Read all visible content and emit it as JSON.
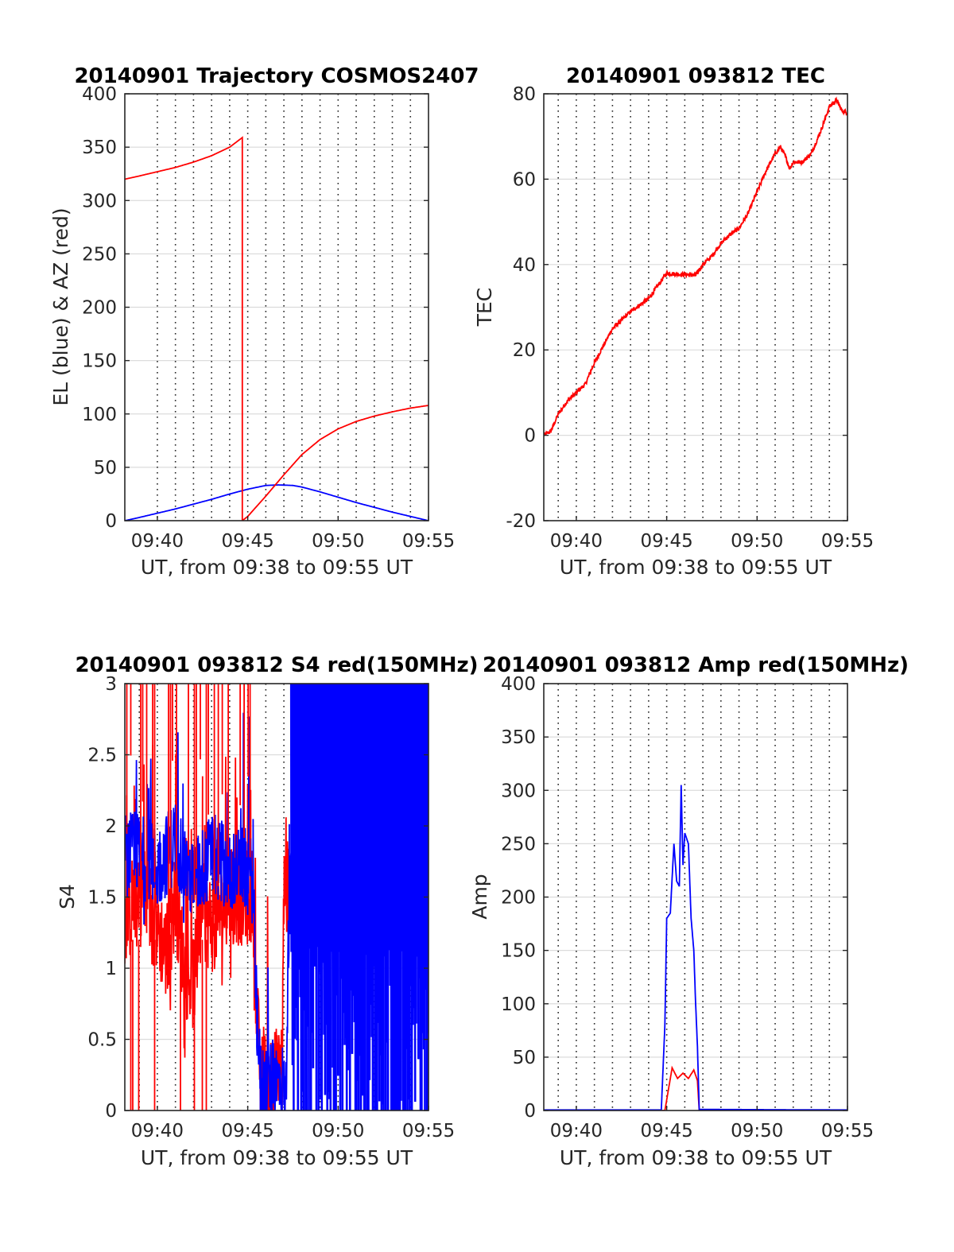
{
  "figure": {
    "background": "#ffffff",
    "colors": {
      "red": "#ff0000",
      "blue": "#0000ff",
      "grid": "#262626",
      "axis": "#262626"
    }
  },
  "chart_data": [
    {
      "type": "line",
      "title": "20140901 Trajectory COSMOS2407",
      "xlabel": "UT, from 09:38 to 09:55 UT",
      "ylabel": "EL (blue) & AZ (red)",
      "x_range_min": [
        578.2,
        595
      ],
      "ylim": [
        0,
        400
      ],
      "y_ticks": [
        "0",
        "50",
        "100",
        "150",
        "200",
        "250",
        "300",
        "350",
        "400"
      ],
      "y_tick_values": [
        0,
        50,
        100,
        150,
        200,
        250,
        300,
        350,
        400
      ],
      "x_ticks": [
        "09:40",
        "09:45",
        "09:50",
        "09:55"
      ],
      "x_tick_values": [
        580,
        585,
        590,
        595
      ],
      "vgrid_minutes": [
        580,
        581,
        582,
        583,
        584,
        585,
        586,
        587,
        588,
        589,
        590,
        591,
        592,
        593,
        594
      ],
      "grid": "dotted vertical every minute, solid horizontal",
      "series": [
        {
          "color": "#0000ff",
          "noise": 0,
          "spikes": 0,
          "points": [
            [
              578.2,
              0
            ],
            [
              579,
              3
            ],
            [
              580,
              7
            ],
            [
              581,
              11
            ],
            [
              582,
              15.5
            ],
            [
              583,
              20
            ],
            [
              584,
              25
            ],
            [
              585,
              29.5
            ],
            [
              586,
              33
            ],
            [
              586.7,
              33.5
            ],
            [
              587.5,
              33
            ],
            [
              588,
              31.5
            ],
            [
              589,
              27
            ],
            [
              590,
              22
            ],
            [
              591,
              17
            ],
            [
              592,
              12.5
            ],
            [
              593,
              8
            ],
            [
              594,
              4
            ],
            [
              595,
              0
            ]
          ]
        },
        {
          "color": "#ff0000",
          "noise": 0,
          "spikes": 0,
          "points": [
            [
              578.2,
              320
            ],
            [
              579,
              323
            ],
            [
              580,
              327
            ],
            [
              581,
              331
            ],
            [
              582,
              336
            ],
            [
              583,
              342
            ],
            [
              584,
              350
            ],
            [
              584.7,
              359
            ],
            [
              584.7,
              0
            ],
            [
              585,
              4
            ],
            [
              586,
              23
            ],
            [
              587,
              43
            ],
            [
              588,
              62
            ],
            [
              589,
              76
            ],
            [
              590,
              86
            ],
            [
              591,
              93
            ],
            [
              592,
              98
            ],
            [
              593,
              102
            ],
            [
              594,
              105.5
            ],
            [
              595,
              108
            ]
          ]
        }
      ]
    },
    {
      "type": "line",
      "title": "20140901 093812 TEC",
      "xlabel": "UT, from 09:38 to 09:55 UT",
      "ylabel": "TEC",
      "x_range_min": [
        578.2,
        595
      ],
      "ylim": [
        -20,
        80
      ],
      "y_ticks": [
        "-20",
        "0",
        "20",
        "40",
        "60",
        "80"
      ],
      "y_tick_values": [
        -20,
        0,
        20,
        40,
        60,
        80
      ],
      "x_ticks": [
        "09:40",
        "09:45",
        "09:50",
        "09:55"
      ],
      "x_tick_values": [
        580,
        585,
        590,
        595
      ],
      "vgrid_minutes": [
        579,
        580,
        581,
        582,
        583,
        584,
        585,
        586,
        587,
        588,
        589,
        590,
        591,
        592,
        593,
        594
      ],
      "grid": "dotted vertical every minute, solid horizontal",
      "series": [
        {
          "color": "#ff0000",
          "noise": 0.5,
          "spikes": 0,
          "points": [
            [
              578.2,
              0
            ],
            [
              578.6,
              1
            ],
            [
              579,
              5
            ],
            [
              579.5,
              8
            ],
            [
              580,
              10
            ],
            [
              580.5,
              12
            ],
            [
              581,
              17
            ],
            [
              581.5,
              21
            ],
            [
              582,
              25
            ],
            [
              582.5,
              27
            ],
            [
              583,
              29
            ],
            [
              583.5,
              30.5
            ],
            [
              584,
              32
            ],
            [
              584.5,
              35
            ],
            [
              585,
              38
            ],
            [
              585.4,
              37.8
            ],
            [
              586.6,
              37.5
            ],
            [
              587,
              40
            ],
            [
              587.5,
              42
            ],
            [
              588,
              45
            ],
            [
              588.5,
              47
            ],
            [
              589,
              48.5
            ],
            [
              589.5,
              52
            ],
            [
              590,
              57
            ],
            [
              590.5,
              62
            ],
            [
              591,
              66
            ],
            [
              591.3,
              67.5
            ],
            [
              591.6,
              65
            ],
            [
              591.8,
              62.5
            ],
            [
              592,
              64
            ],
            [
              592.5,
              64
            ],
            [
              593,
              66
            ],
            [
              593.5,
              71
            ],
            [
              594,
              77
            ],
            [
              594.4,
              78.5
            ],
            [
              594.7,
              76
            ],
            [
              595,
              75.5
            ]
          ]
        }
      ]
    },
    {
      "type": "line",
      "title": "20140901 093812 S4 red(150MHz)",
      "xlabel": "UT, from 09:38 to 09:55 UT",
      "ylabel": "S4",
      "x_range_min": [
        578.2,
        595
      ],
      "ylim": [
        0,
        3
      ],
      "y_ticks": [
        "0",
        "0.5",
        "1",
        "1.5",
        "2",
        "2.5",
        "3"
      ],
      "y_tick_values": [
        0,
        0.5,
        1,
        1.5,
        2,
        2.5,
        3
      ],
      "x_ticks": [
        "09:40",
        "09:45",
        "09:50",
        "09:55"
      ],
      "x_tick_values": [
        580,
        585,
        590,
        595
      ],
      "vgrid_minutes": [
        579,
        580,
        581,
        582,
        583,
        584,
        585,
        586,
        587,
        588,
        589,
        590,
        591,
        592,
        593,
        594
      ],
      "grid": "dotted vertical every minute, solid horizontal",
      "series": [
        {
          "color": "#ff0000",
          "noise": 0.35,
          "spikes": 0.25,
          "points": [
            [
              578.2,
              1.3
            ],
            [
              579,
              1.6
            ],
            [
              580,
              1.3
            ],
            [
              580.5,
              1.1
            ],
            [
              581,
              1.5
            ],
            [
              581.5,
              1.0
            ],
            [
              582,
              0.9
            ],
            [
              582.5,
              1.4
            ],
            [
              583,
              1.3
            ],
            [
              584,
              1.5
            ],
            [
              584.8,
              1.5
            ],
            [
              585.3,
              1.5
            ],
            [
              585.5,
              0.7
            ],
            [
              585.7,
              0.2
            ],
            [
              586.5,
              0.25
            ],
            [
              586.9,
              0.2
            ],
            [
              587,
              1.5
            ],
            [
              588,
              1.8
            ],
            [
              589,
              1.9
            ],
            [
              590,
              2.0
            ],
            [
              591,
              2.0
            ],
            [
              592,
              2.0
            ],
            [
              593,
              2.0
            ],
            [
              594,
              2.0
            ],
            [
              595,
              2.0
            ]
          ]
        },
        {
          "color": "#0000ff",
          "noise": 0.3,
          "spikes": 0.2,
          "points": [
            [
              578.2,
              1.8
            ],
            [
              579,
              1.8
            ],
            [
              580,
              1.7
            ],
            [
              581,
              1.9
            ],
            [
              582,
              1.6
            ],
            [
              583,
              1.8
            ],
            [
              584,
              1.7
            ],
            [
              584.8,
              1.7
            ],
            [
              585.3,
              1.6
            ],
            [
              585.5,
              0.7
            ],
            [
              585.7,
              0.2
            ],
            [
              586.5,
              0.2
            ],
            [
              586.9,
              0.2
            ],
            [
              587.1,
              0.05
            ],
            [
              587.3,
              1.5
            ],
            [
              588,
              1.8
            ],
            [
              589,
              1.5
            ],
            [
              590,
              1.5
            ],
            [
              591,
              1.5
            ],
            [
              592,
              1.5
            ],
            [
              593,
              1.5
            ],
            [
              594,
              1.5
            ],
            [
              595,
              1.5
            ]
          ]
        }
      ],
      "saturation_from_minute": 587.4
    },
    {
      "type": "line",
      "title": "20140901 093812 Amp red(150MHz)",
      "xlabel": "UT, from 09:38 to 09:55 UT",
      "ylabel": "Amp",
      "x_range_min": [
        578.2,
        595
      ],
      "ylim": [
        0,
        400
      ],
      "y_ticks": [
        "0",
        "50",
        "100",
        "150",
        "200",
        "250",
        "300",
        "350",
        "400"
      ],
      "y_tick_values": [
        0,
        50,
        100,
        150,
        200,
        250,
        300,
        350,
        400
      ],
      "x_ticks": [
        "09:40",
        "09:45",
        "09:50",
        "09:55"
      ],
      "x_tick_values": [
        580,
        585,
        590,
        595
      ],
      "vgrid_minutes": [
        579,
        580,
        581,
        582,
        583,
        584,
        585,
        586,
        587,
        588,
        589,
        590,
        591,
        592,
        593,
        594
      ],
      "grid": "dotted vertical every minute, solid horizontal",
      "series": [
        {
          "color": "#ff0000",
          "noise": 0,
          "spikes": 0,
          "points": [
            [
              578.2,
              0
            ],
            [
              584.9,
              0
            ],
            [
              585.1,
              20
            ],
            [
              585.3,
              40
            ],
            [
              585.6,
              30
            ],
            [
              585.9,
              35
            ],
            [
              586.2,
              30
            ],
            [
              586.5,
              38
            ],
            [
              586.7,
              28
            ],
            [
              586.8,
              0
            ],
            [
              595,
              0
            ]
          ]
        },
        {
          "color": "#0000ff",
          "noise": 0,
          "spikes": 0,
          "points": [
            [
              578.2,
              0.5
            ],
            [
              584.7,
              0.5
            ],
            [
              584.9,
              80
            ],
            [
              585.0,
              180
            ],
            [
              585.2,
              185
            ],
            [
              585.4,
              250
            ],
            [
              585.55,
              215
            ],
            [
              585.7,
              210
            ],
            [
              585.8,
              305
            ],
            [
              585.9,
              230
            ],
            [
              586.0,
              260
            ],
            [
              586.2,
              250
            ],
            [
              586.35,
              180
            ],
            [
              586.5,
              150
            ],
            [
              586.6,
              100
            ],
            [
              586.7,
              60
            ],
            [
              586.8,
              1
            ],
            [
              595,
              0.5
            ]
          ]
        }
      ]
    }
  ]
}
